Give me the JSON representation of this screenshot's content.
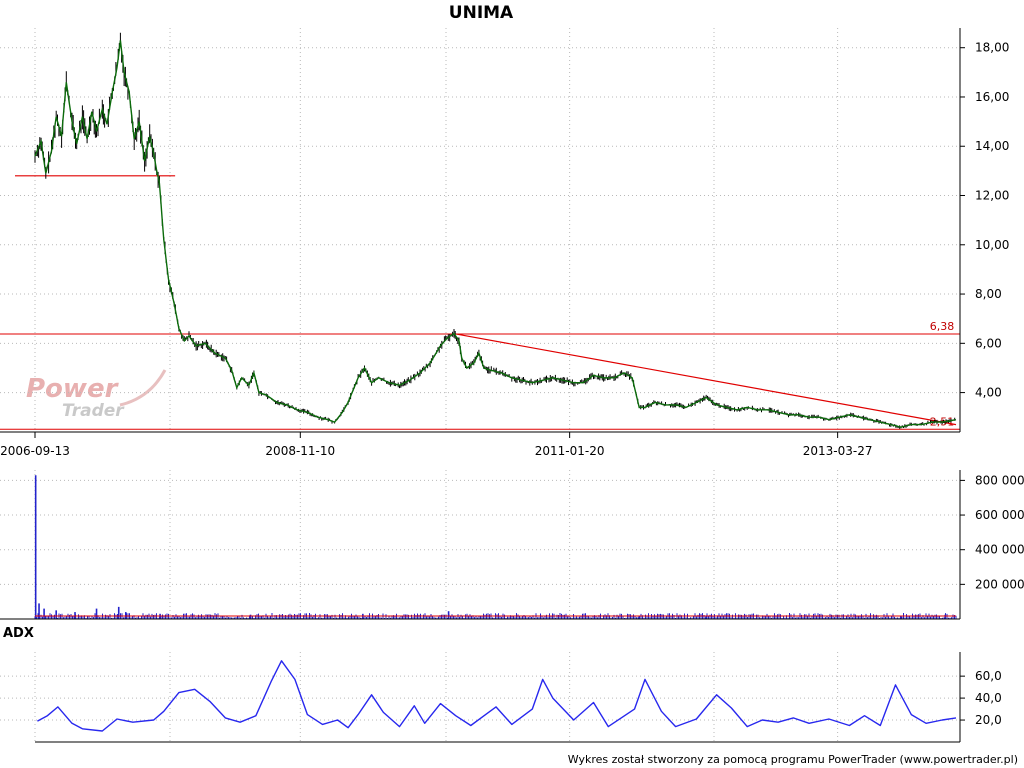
{
  "title": "UNIMA",
  "footer": "Wykres został stworzony za pomocą programu PowerTrader (www.powertrader.pl)",
  "watermark": {
    "line1": "Power",
    "line2": "Trader"
  },
  "colors": {
    "price": "#0b6b0b",
    "price_dark": "#000000",
    "levels": "#e00000",
    "volume": "#2222cc",
    "volume_ma": "#e00000",
    "adx": "#2828ee",
    "watermark": "#e8b0b0"
  },
  "chart_data": [
    {
      "type": "line",
      "panel": "price",
      "x_ticks": [
        "2006-09-13",
        "2008-11-10",
        "2011-01-20",
        "2013-03-27"
      ],
      "x_range": [
        "2006-09-13",
        "2014-03-14"
      ],
      "y_ticks": [
        "4,00",
        "6,00",
        "8,00",
        "10,00",
        "12,00",
        "14,00",
        "16,00",
        "18,00"
      ],
      "ylim": [
        2.4,
        18.8
      ],
      "grid": true,
      "series": [
        {
          "points": [
            [
              "2006-09-13",
              13.6
            ],
            [
              "2006-10-01",
              14.2
            ],
            [
              "2006-10-15",
              12.9
            ],
            [
              "2006-11-01",
              13.8
            ],
            [
              "2006-11-15",
              15.2
            ],
            [
              "2006-12-01",
              14.4
            ],
            [
              "2006-12-15",
              16.6
            ],
            [
              "2007-01-01",
              15.0
            ],
            [
              "2007-01-15",
              14.1
            ],
            [
              "2007-02-01",
              15.2
            ],
            [
              "2007-02-15",
              14.3
            ],
            [
              "2007-03-01",
              15.4
            ],
            [
              "2007-03-15",
              14.6
            ],
            [
              "2007-04-01",
              15.5
            ],
            [
              "2007-04-15",
              14.9
            ],
            [
              "2007-05-01",
              16.2
            ],
            [
              "2007-05-15",
              17.2
            ],
            [
              "2007-05-25",
              18.3
            ],
            [
              "2007-06-05",
              17.0
            ],
            [
              "2007-06-20",
              16.2
            ],
            [
              "2007-07-05",
              14.3
            ],
            [
              "2007-07-20",
              15.0
            ],
            [
              "2007-08-05",
              13.4
            ],
            [
              "2007-08-20",
              14.4
            ],
            [
              "2007-09-01",
              13.7
            ],
            [
              "2007-09-10",
              13.0
            ],
            [
              "2007-09-18",
              12.5
            ],
            [
              "2007-10-01",
              10.2
            ],
            [
              "2007-10-15",
              8.6
            ],
            [
              "2007-11-01",
              7.6
            ],
            [
              "2007-11-15",
              6.6
            ],
            [
              "2007-12-01",
              6.1
            ],
            [
              "2007-12-15",
              6.3
            ],
            [
              "2008-01-05",
              5.9
            ],
            [
              "2008-02-01",
              6.0
            ],
            [
              "2008-03-01",
              5.6
            ],
            [
              "2008-04-01",
              5.4
            ],
            [
              "2008-04-20",
              4.9
            ],
            [
              "2008-05-05",
              4.2
            ],
            [
              "2008-05-20",
              4.6
            ],
            [
              "2008-06-10",
              4.3
            ],
            [
              "2008-06-25",
              4.8
            ],
            [
              "2008-07-10",
              4.0
            ],
            [
              "2008-08-01",
              3.9
            ],
            [
              "2008-09-01",
              3.6
            ],
            [
              "2008-10-01",
              3.5
            ],
            [
              "2008-11-01",
              3.3
            ],
            [
              "2008-12-01",
              3.2
            ],
            [
              "2009-01-01",
              3.0
            ],
            [
              "2009-02-01",
              2.9
            ],
            [
              "2009-02-20",
              2.8
            ],
            [
              "2009-03-15",
              3.2
            ],
            [
              "2009-04-01",
              3.6
            ],
            [
              "2009-05-01",
              4.6
            ],
            [
              "2009-05-20",
              5.0
            ],
            [
              "2009-06-10",
              4.4
            ],
            [
              "2009-07-01",
              4.6
            ],
            [
              "2009-08-01",
              4.4
            ],
            [
              "2009-09-01",
              4.3
            ],
            [
              "2009-10-01",
              4.5
            ],
            [
              "2009-11-01",
              4.8
            ],
            [
              "2009-12-01",
              5.2
            ],
            [
              "2010-01-01",
              5.9
            ],
            [
              "2010-01-20",
              6.2
            ],
            [
              "2010-02-10",
              6.4
            ],
            [
              "2010-02-25",
              6.1
            ],
            [
              "2010-03-05",
              5.4
            ],
            [
              "2010-03-20",
              5.0
            ],
            [
              "2010-04-10",
              5.2
            ],
            [
              "2010-04-25",
              5.6
            ],
            [
              "2010-05-10",
              5.0
            ],
            [
              "2010-06-01",
              4.9
            ],
            [
              "2010-07-01",
              4.8
            ],
            [
              "2010-08-01",
              4.6
            ],
            [
              "2010-09-01",
              4.5
            ],
            [
              "2010-10-01",
              4.4
            ],
            [
              "2010-11-01",
              4.5
            ],
            [
              "2010-12-01",
              4.6
            ],
            [
              "2011-01-01",
              4.5
            ],
            [
              "2011-02-01",
              4.4
            ],
            [
              "2011-03-01",
              4.4
            ],
            [
              "2011-04-01",
              4.7
            ],
            [
              "2011-05-01",
              4.6
            ],
            [
              "2011-06-01",
              4.6
            ],
            [
              "2011-07-01",
              4.8
            ],
            [
              "2011-07-25",
              4.6
            ],
            [
              "2011-08-15",
              3.4
            ],
            [
              "2011-09-01",
              3.4
            ],
            [
              "2011-10-01",
              3.6
            ],
            [
              "2011-11-01",
              3.5
            ],
            [
              "2011-12-01",
              3.5
            ],
            [
              "2012-01-01",
              3.4
            ],
            [
              "2012-02-01",
              3.6
            ],
            [
              "2012-03-01",
              3.8
            ],
            [
              "2012-04-01",
              3.5
            ],
            [
              "2012-05-01",
              3.4
            ],
            [
              "2012-06-01",
              3.3
            ],
            [
              "2012-07-01",
              3.4
            ],
            [
              "2012-08-01",
              3.3
            ],
            [
              "2012-09-01",
              3.3
            ],
            [
              "2012-10-01",
              3.2
            ],
            [
              "2012-11-01",
              3.1
            ],
            [
              "2012-12-01",
              3.1
            ],
            [
              "2013-01-01",
              3.0
            ],
            [
              "2013-02-01",
              3.0
            ],
            [
              "2013-03-01",
              2.9
            ],
            [
              "2013-04-01",
              3.0
            ],
            [
              "2013-05-01",
              3.1
            ],
            [
              "2013-06-01",
              3.0
            ],
            [
              "2013-07-01",
              2.9
            ],
            [
              "2013-08-01",
              2.8
            ],
            [
              "2013-09-01",
              2.7
            ],
            [
              "2013-10-01",
              2.6
            ],
            [
              "2013-11-01",
              2.7
            ],
            [
              "2013-12-01",
              2.7
            ],
            [
              "2014-01-01",
              2.8
            ],
            [
              "2014-02-01",
              2.8
            ],
            [
              "2014-03-14",
              2.9
            ]
          ]
        }
      ],
      "levels": [
        {
          "value": 6.38,
          "label": "6,38"
        },
        {
          "value": 2.51,
          "label": "2,51"
        }
      ],
      "support_segment": [
        [
          "2006-09-13",
          12.8
        ],
        [
          "2007-10-05",
          12.8
        ]
      ],
      "trendline": [
        [
          "2010-02-15",
          6.38
        ],
        [
          "2014-03-14",
          2.7
        ]
      ]
    },
    {
      "type": "bar",
      "panel": "volume",
      "y_ticks": [
        "200 000",
        "400 000",
        "600 000",
        "800 000"
      ],
      "ylim": [
        0,
        860000
      ],
      "grid": true,
      "series": [
        {
          "points": [
            [
              "2006-09-15",
              830000
            ],
            [
              "2006-09-25",
              90000
            ],
            [
              "2006-10-10",
              60000
            ],
            [
              "2006-11-15",
              50000
            ],
            [
              "2007-01-10",
              40000
            ],
            [
              "2007-03-15",
              60000
            ],
            [
              "2007-05-20",
              70000
            ],
            [
              "2007-06-10",
              40000
            ],
            [
              "2007-09-20",
              30000
            ],
            [
              "2008-06-15",
              25000
            ],
            [
              "2009-05-15",
              30000
            ],
            [
              "2010-01-25",
              45000
            ],
            [
              "2011-08-15",
              20000
            ],
            [
              "2012-03-01",
              18000
            ],
            [
              "2013-10-01",
              15000
            ],
            [
              "2014-02-10",
              25000
            ]
          ]
        }
      ]
    },
    {
      "type": "line",
      "panel": "adx",
      "panel_label": "ADX",
      "y_ticks": [
        "20,0",
        "40,0",
        "60,0"
      ],
      "ylim": [
        0,
        82
      ],
      "grid": true,
      "series": [
        {
          "points": [
            [
              "2006-09-20",
              19
            ],
            [
              "2006-10-20",
              24
            ],
            [
              "2006-11-20",
              32
            ],
            [
              "2007-01-01",
              17
            ],
            [
              "2007-02-01",
              12
            ],
            [
              "2007-04-01",
              10
            ],
            [
              "2007-05-15",
              21
            ],
            [
              "2007-07-01",
              18
            ],
            [
              "2007-09-01",
              20
            ],
            [
              "2007-10-01",
              28
            ],
            [
              "2007-11-15",
              45
            ],
            [
              "2008-01-01",
              48
            ],
            [
              "2008-02-15",
              37
            ],
            [
              "2008-04-01",
              22
            ],
            [
              "2008-05-15",
              18
            ],
            [
              "2008-07-01",
              24
            ],
            [
              "2008-08-15",
              55
            ],
            [
              "2008-09-15",
              74
            ],
            [
              "2008-10-25",
              57
            ],
            [
              "2008-12-01",
              25
            ],
            [
              "2009-01-15",
              16
            ],
            [
              "2009-03-01",
              20
            ],
            [
              "2009-04-01",
              13
            ],
            [
              "2009-05-01",
              25
            ],
            [
              "2009-06-10",
              43
            ],
            [
              "2009-07-15",
              27
            ],
            [
              "2009-09-01",
              14
            ],
            [
              "2009-10-15",
              33
            ],
            [
              "2009-11-15",
              17
            ],
            [
              "2010-01-01",
              35
            ],
            [
              "2010-02-15",
              24
            ],
            [
              "2010-04-01",
              15
            ],
            [
              "2010-05-15",
              25
            ],
            [
              "2010-06-15",
              32
            ],
            [
              "2010-08-01",
              16
            ],
            [
              "2010-10-01",
              30
            ],
            [
              "2010-11-01",
              57
            ],
            [
              "2010-12-01",
              40
            ],
            [
              "2011-02-01",
              20
            ],
            [
              "2011-04-01",
              36
            ],
            [
              "2011-05-15",
              14
            ],
            [
              "2011-08-01",
              30
            ],
            [
              "2011-09-01",
              57
            ],
            [
              "2011-10-20",
              28
            ],
            [
              "2011-12-01",
              14
            ],
            [
              "2012-02-01",
              21
            ],
            [
              "2012-04-01",
              43
            ],
            [
              "2012-05-15",
              31
            ],
            [
              "2012-07-01",
              14
            ],
            [
              "2012-08-15",
              20
            ],
            [
              "2012-10-01",
              18
            ],
            [
              "2012-11-15",
              22
            ],
            [
              "2013-01-01",
              17
            ],
            [
              "2013-03-01",
              21
            ],
            [
              "2013-05-01",
              15
            ],
            [
              "2013-06-15",
              24
            ],
            [
              "2013-08-01",
              15
            ],
            [
              "2013-09-15",
              52
            ],
            [
              "2013-11-01",
              25
            ],
            [
              "2013-12-15",
              17
            ],
            [
              "2014-02-01",
              20
            ],
            [
              "2014-03-14",
              22
            ]
          ]
        }
      ]
    }
  ]
}
